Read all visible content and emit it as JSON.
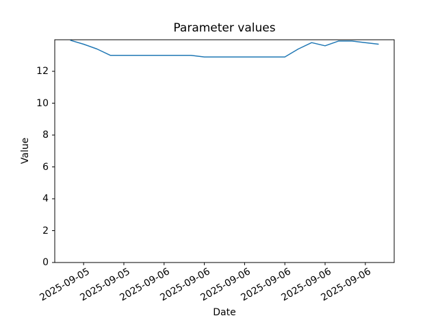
{
  "figure": {
    "title": "Parameter values",
    "xlabel": "Date",
    "ylabel": "Value"
  },
  "chart_data": {
    "type": "line",
    "title": "Parameter values",
    "xlabel": "Date",
    "ylabel": "Value",
    "ylim": [
      0,
      13.98
    ],
    "yticks": [
      0,
      2,
      4,
      6,
      8,
      10,
      12
    ],
    "x_tick_labels": [
      "2025-09-05",
      "2025-09-05",
      "2025-09-06",
      "2025-09-06",
      "2025-09-06",
      "2025-09-06",
      "2025-09-06",
      "2025-09-06"
    ],
    "x_tick_indices": [
      1,
      4,
      7,
      10,
      13,
      16,
      19,
      22
    ],
    "x_tick_rotation_deg": 30,
    "grid": false,
    "legend": "none",
    "series": [
      {
        "name": "parameter-values-line",
        "color": "#1f77b4",
        "values": [
          13.95,
          13.7,
          13.4,
          13.0,
          13.0,
          13.0,
          13.0,
          13.0,
          13.0,
          13.0,
          12.9,
          12.9,
          12.9,
          12.9,
          12.9,
          12.9,
          12.9,
          13.4,
          13.8,
          13.6,
          13.9,
          13.9,
          13.8,
          13.7
        ]
      }
    ]
  }
}
